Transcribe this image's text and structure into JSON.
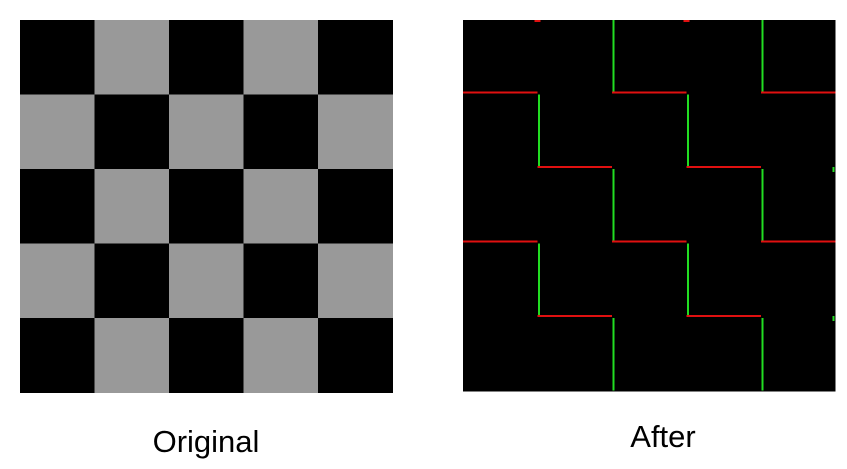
{
  "panels": [
    {
      "caption": "Original"
    },
    {
      "caption": "After"
    }
  ]
}
